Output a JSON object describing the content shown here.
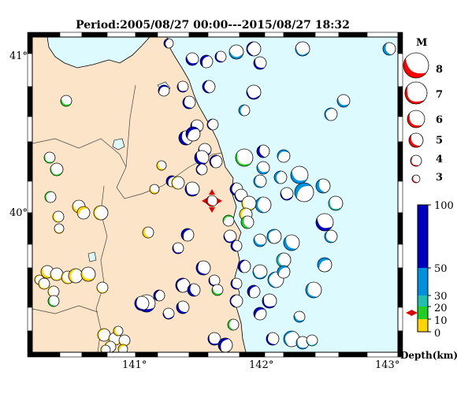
{
  "title": "Period:2005/08/27 00:00---2015/08/27 18:32",
  "map": {
    "x_ticks": [
      "141°",
      "142°",
      "143°"
    ],
    "y_ticks": [
      "41°",
      "40°"
    ]
  },
  "magnitude_legend": {
    "header": "M",
    "levels": [
      "8",
      "7",
      "6",
      "5",
      "4",
      "3"
    ]
  },
  "depth_legend": {
    "labels": [
      "100",
      "50",
      "30",
      "20",
      "10",
      "0"
    ],
    "unit": "Depth(km)",
    "colors": {
      "deep": "#0000c0",
      "mid": "#0090e0",
      "shallow": "#20c0b0",
      "green": "#20d020",
      "yellow": "#ffd400"
    }
  },
  "colors": {
    "land": "#fbe4c8",
    "sea": "#dcfaff",
    "mainshock": "#ff0000"
  }
}
